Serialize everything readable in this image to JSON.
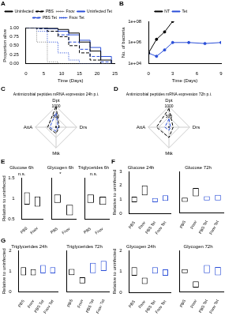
{
  "chart_data": [
    {
      "panel": "A",
      "type": "step",
      "x_label": "Time (Days)",
      "y_label": "Proportion alive",
      "x": [
        0,
        3,
        6,
        9,
        12,
        15,
        18,
        21,
        24
      ],
      "xlim": [
        0,
        25
      ],
      "xticks": [
        0,
        5,
        10,
        15,
        20,
        25
      ],
      "ylim": [
        0,
        1
      ],
      "yticks": [
        {
          "value": 0,
          "label": "0.00"
        },
        {
          "value": 0.25,
          "label": "0.25"
        },
        {
          "value": 0.5,
          "label": "0.50"
        },
        {
          "value": 0.75,
          "label": "0.75"
        },
        {
          "value": 1,
          "label": "1.00"
        }
      ],
      "legend": "top",
      "series": [
        {
          "name": "Uninfected",
          "color": "#000000",
          "line_style": "solid",
          "values": [
            1,
            1,
            0.98,
            0.95,
            0.85,
            0.6,
            0.35,
            0.1,
            0
          ]
        },
        {
          "name": "PBS",
          "color": "#000000",
          "line_style": "dashed",
          "values": [
            1,
            0.98,
            0.9,
            0.75,
            0.5,
            0.3,
            0.1,
            0,
            0
          ]
        },
        {
          "name": "Fnov",
          "color": "#808080",
          "line_style": "dotted",
          "values": [
            1,
            0.6,
            0.05,
            0,
            0,
            0,
            0,
            0,
            0
          ]
        },
        {
          "name": "Uninfected Tet",
          "color": "#2b4fd8",
          "line_style": "solid",
          "values": [
            1,
            1,
            0.97,
            0.9,
            0.8,
            0.65,
            0.45,
            0.2,
            0.05
          ]
        },
        {
          "name": "PBS Tet",
          "color": "#2b4fd8",
          "line_style": "dashed",
          "values": [
            1,
            0.97,
            0.9,
            0.8,
            0.6,
            0.4,
            0.2,
            0.05,
            0
          ]
        },
        {
          "name": "Fnov Tet",
          "color": "#2b4fd8",
          "line_style": "dotted",
          "values": [
            1,
            0.9,
            0.6,
            0.3,
            0.1,
            0,
            0,
            0,
            0
          ]
        }
      ]
    },
    {
      "panel": "B",
      "type": "line",
      "x_label": "Time (Days)",
      "y_label": "No. of bacteria",
      "x": [
        0,
        1,
        2,
        3,
        5,
        7,
        9
      ],
      "xlim": [
        0,
        9
      ],
      "xticks": [
        0,
        3,
        6,
        9
      ],
      "log": "y",
      "ylim": [
        10000,
        100000000
      ],
      "yticks": [
        {
          "value": 10000,
          "label": "1e+04"
        },
        {
          "value": 1000000,
          "label": "1e+06"
        },
        {
          "value": 100000000,
          "label": "1e+08"
        }
      ],
      "legend": "top",
      "series": [
        {
          "name": "NT",
          "color": "#000000",
          "marker": "circle",
          "line_style": "solid",
          "values": [
            100000,
            2000000,
            10000000,
            100000000,
            null,
            null,
            null
          ]
        },
        {
          "name": "Tet",
          "color": "#2b4fd8",
          "marker": "circle",
          "line_style": "solid",
          "values": [
            100000,
            50000,
            200000,
            1000000,
            1000000,
            800000,
            1000000
          ]
        }
      ]
    },
    {
      "panel": "C",
      "type": "radar",
      "title": "Antimicrobial peptides mRNA expression 24h p.i.",
      "categories": [
        "Dpt",
        "Drs",
        "Mtk",
        "AttA"
      ],
      "ylim": [
        0,
        1000
      ],
      "yticks": [
        0,
        500,
        1000
      ],
      "grid": true,
      "series": [
        {
          "name": "PBS",
          "color": "#000000",
          "line_style": "solid",
          "values": [
            50,
            20,
            30,
            20
          ]
        },
        {
          "name": "Fnov",
          "color": "#000000",
          "line_style": "dashed",
          "values": [
            1000,
            150,
            300,
            400
          ]
        },
        {
          "name": "PBS Tet",
          "color": "#2b4fd8",
          "line_style": "solid",
          "values": [
            40,
            15,
            20,
            15
          ]
        },
        {
          "name": "Fnov Tet",
          "color": "#2b4fd8",
          "line_style": "dashed",
          "values": [
            700,
            100,
            200,
            300
          ]
        }
      ]
    },
    {
      "panel": "D",
      "type": "radar",
      "title": "Antimicrobial peptides mRNA expression 72h p.i.",
      "categories": [
        "Dpt",
        "Drs",
        "Mtk",
        "AttA"
      ],
      "ylim": [
        0,
        1000
      ],
      "yticks": [
        0,
        500,
        1000
      ],
      "grid": true,
      "series": [
        {
          "name": "PBS",
          "color": "#000000",
          "line_style": "solid",
          "values": [
            30,
            15,
            20,
            15
          ]
        },
        {
          "name": "Fnov",
          "color": "#000000",
          "line_style": "dashed",
          "values": [
            900,
            200,
            500,
            600
          ]
        },
        {
          "name": "PBS Tet",
          "color": "#2b4fd8",
          "line_style": "solid",
          "values": [
            25,
            10,
            15,
            10
          ]
        },
        {
          "name": "Fnov Tet",
          "color": "#2b4fd8",
          "line_style": "dashed",
          "values": [
            400,
            80,
            150,
            200
          ]
        }
      ]
    },
    {
      "panel": "E",
      "type": "bar",
      "title": "Glucose 6h",
      "annotation": "n.s.",
      "y_label": "Relative to uninfected",
      "categories": [
        "PBS",
        "Fnov"
      ],
      "values": [
        [
          0.85,
          1.15
        ],
        [
          0.8,
          1.05
        ]
      ],
      "colors": [
        "#000000",
        "#000000"
      ],
      "ylim": [
        0.5,
        1.5
      ],
      "yticks": [
        0.5,
        1,
        1.5
      ]
    },
    {
      "type": "bar",
      "title": "Glycogen 6h",
      "annotation": "*",
      "tick_labels": "x",
      "categories": [
        "PBS",
        "Fnov"
      ],
      "values": [
        [
          0.9,
          1.1
        ],
        [
          0.6,
          0.85
        ]
      ],
      "colors": [
        "#000000",
        "#000000"
      ],
      "ylim": [
        0.5,
        1.5
      ],
      "yticks": [
        0.5,
        1,
        1.5
      ]
    },
    {
      "type": "bar",
      "title": "Triglycerides 6h",
      "annotation": "n.s.",
      "tick_labels": "x",
      "categories": [
        "PBS",
        "Fnov"
      ],
      "values": [
        [
          0.9,
          1.1
        ],
        [
          0.85,
          1.05
        ]
      ],
      "colors": [
        "#000000",
        "#000000"
      ],
      "ylim": [
        0.5,
        1.5
      ],
      "yticks": [
        0.5,
        1,
        1.5
      ]
    },
    {
      "panel": "F",
      "type": "bar",
      "title": "Glucose 24h",
      "y_label": "Relative to uninfected",
      "categories": [
        "PBS",
        "Fnov",
        "PBS Tet",
        "Fnov Tet"
      ],
      "values": [
        [
          0.8,
          1.2
        ],
        [
          1.3,
          2.0
        ],
        [
          0.8,
          1.1
        ],
        [
          0.9,
          1.3
        ]
      ],
      "colors": [
        "#000000",
        "#000000",
        "#2b4fd8",
        "#2b4fd8"
      ],
      "ylim": [
        0,
        3
      ],
      "yticks": [
        0,
        1,
        2,
        3
      ]
    },
    {
      "type": "bar",
      "title": "Glucose 72h",
      "tick_labels": "x",
      "categories": [
        "PBS",
        "Fnov",
        "PBS Tet",
        "Fnov Tet"
      ],
      "values": [
        [
          0.8,
          1.1
        ],
        [
          1.2,
          1.8
        ],
        [
          0.9,
          1.2
        ],
        [
          0.9,
          1.3
        ]
      ],
      "colors": [
        "#000000",
        "#000000",
        "#2b4fd8",
        "#2b4fd8"
      ],
      "ylim": [
        0,
        3
      ],
      "yticks": [
        0,
        1,
        2,
        3
      ]
    },
    {
      "type": "bar",
      "title": "Glycogen 24h",
      "y_label": "Relative to uninfected",
      "categories": [
        "PBS",
        "Fnov",
        "PBS Tet",
        "Fnov Tet"
      ],
      "values": [
        [
          0.8,
          1.2
        ],
        [
          0.4,
          0.7
        ],
        [
          0.9,
          1.2
        ],
        [
          0.8,
          1.1
        ]
      ],
      "colors": [
        "#000000",
        "#000000",
        "#2b4fd8",
        "#2b4fd8"
      ],
      "ylim": [
        0,
        2
      ],
      "yticks": [
        0,
        1,
        2
      ]
    },
    {
      "type": "bar",
      "title": "Glycogen 72h",
      "tick_labels": "x",
      "categories": [
        "PBS",
        "Fnov",
        "PBS Tet",
        "Fnov Tet"
      ],
      "values": [
        [
          0.9,
          1.1
        ],
        [
          0.2,
          0.5
        ],
        [
          0.9,
          1.3
        ],
        [
          0.8,
          1.2
        ]
      ],
      "colors": [
        "#000000",
        "#000000",
        "#2b4fd8",
        "#2b4fd8"
      ],
      "ylim": [
        0,
        2
      ],
      "yticks": [
        0,
        1,
        2
      ]
    },
    {
      "panel": "G",
      "type": "bar",
      "title": "Triglycerides 24h",
      "y_label": "Relative to uninfected",
      "categories": [
        "PBS",
        "Fnov",
        "PBS Tet",
        "Fnov Tet"
      ],
      "values": [
        [
          0.8,
          1.2
        ],
        [
          0.8,
          1.1
        ],
        [
          0.9,
          1.3
        ],
        [
          0.9,
          1.2
        ]
      ],
      "colors": [
        "#000000",
        "#000000",
        "#2b4fd8",
        "#2b4fd8"
      ],
      "ylim": [
        0,
        2
      ],
      "yticks": [
        0,
        1,
        2
      ]
    },
    {
      "type": "bar",
      "title": "Triglycerides 72h",
      "tick_labels": "x",
      "categories": [
        "PBS",
        "Fnov",
        "PBS Tet",
        "Fnov Tet"
      ],
      "values": [
        [
          0.8,
          1.1
        ],
        [
          0.4,
          0.7
        ],
        [
          0.9,
          1.4
        ],
        [
          1.0,
          1.5
        ]
      ],
      "colors": [
        "#000000",
        "#000000",
        "#2b4fd8",
        "#2b4fd8"
      ],
      "ylim": [
        0,
        2
      ],
      "yticks": [
        0,
        1,
        2
      ]
    }
  ]
}
